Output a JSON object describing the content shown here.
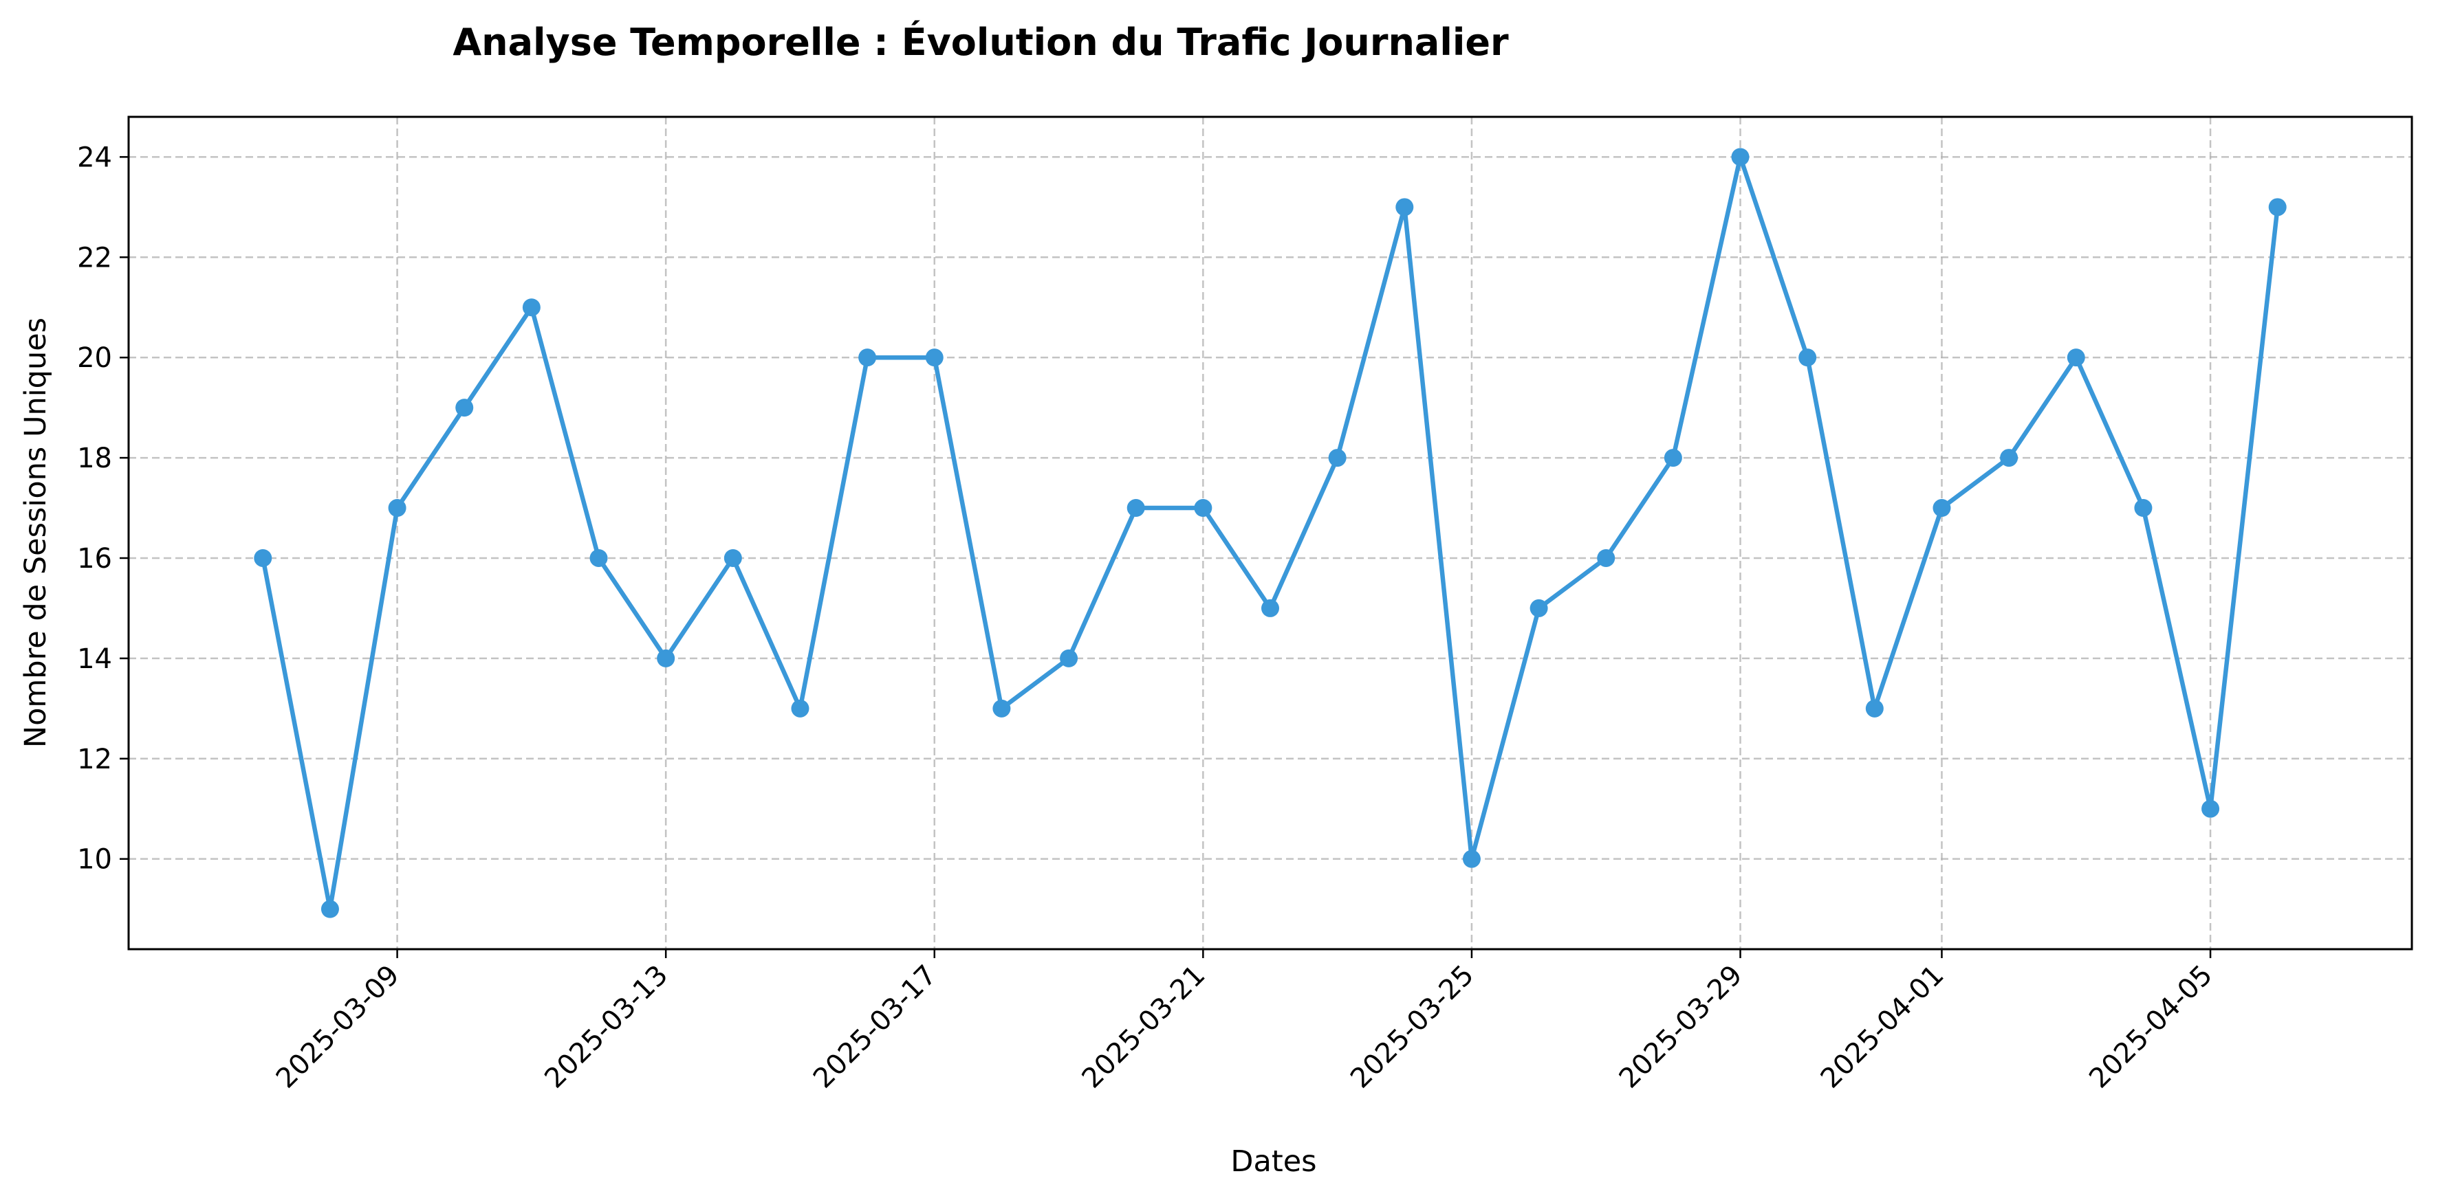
{
  "chart_data": {
    "type": "line",
    "title": "Analyse Temporelle : Évolution du Trafic Journalier",
    "xlabel": "Dates",
    "ylabel": "Nombre de Sessions Uniques",
    "x_tick_labels": [
      "2025-03-09",
      "2025-03-13",
      "2025-03-17",
      "2025-03-21",
      "2025-03-25",
      "2025-03-29",
      "2025-04-01",
      "2025-04-05"
    ],
    "y_tick_labels": [
      "10",
      "12",
      "14",
      "16",
      "18",
      "20",
      "22",
      "24"
    ],
    "y_ticks": [
      10,
      12,
      14,
      16,
      18,
      20,
      22,
      24
    ],
    "xlim": [
      "2025-03-05",
      "2025-04-08"
    ],
    "ylim": [
      8.2,
      24.8
    ],
    "grid": true,
    "series": [
      {
        "color": "#3a98d9",
        "marker": "circle",
        "x": [
          "2025-03-07",
          "2025-03-08",
          "2025-03-09",
          "2025-03-10",
          "2025-03-11",
          "2025-03-12",
          "2025-03-13",
          "2025-03-14",
          "2025-03-15",
          "2025-03-16",
          "2025-03-17",
          "2025-03-18",
          "2025-03-19",
          "2025-03-20",
          "2025-03-21",
          "2025-03-22",
          "2025-03-23",
          "2025-03-24",
          "2025-03-25",
          "2025-03-26",
          "2025-03-27",
          "2025-03-28",
          "2025-03-29",
          "2025-03-30",
          "2025-03-31",
          "2025-04-01",
          "2025-04-02",
          "2025-04-03",
          "2025-04-04",
          "2025-04-05",
          "2025-04-06"
        ],
        "values": [
          16,
          9,
          17,
          19,
          21,
          16,
          14,
          16,
          13,
          20,
          20,
          13,
          14,
          17,
          17,
          15,
          18,
          23,
          10,
          15,
          16,
          18,
          24,
          20,
          13,
          17,
          18,
          20,
          17,
          11,
          23
        ]
      }
    ]
  }
}
